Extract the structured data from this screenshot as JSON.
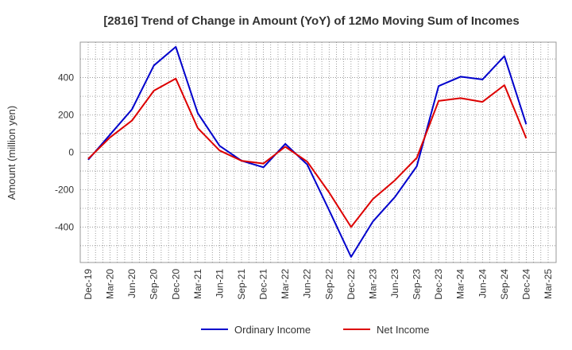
{
  "chart_data": {
    "type": "line",
    "title": "[2816]  Trend of Change in Amount (YoY) of 12Mo Moving Sum of Incomes",
    "xlabel": "",
    "ylabel": "Amount (million yen)",
    "ylim": [
      -590,
      590
    ],
    "yticks": [
      400,
      200,
      0,
      -200,
      -400
    ],
    "categories": [
      "Dec-19",
      "Mar-20",
      "Jun-20",
      "Sep-20",
      "Dec-20",
      "Mar-21",
      "Jun-21",
      "Sep-21",
      "Dec-21",
      "Mar-22",
      "Jun-22",
      "Sep-22",
      "Dec-22",
      "Mar-23",
      "Jun-23",
      "Sep-23",
      "Dec-23",
      "Mar-24",
      "Jun-24",
      "Sep-24",
      "Dec-24",
      "Mar-25"
    ],
    "series": [
      {
        "name": "Ordinary Income",
        "color": "#0000cc",
        "values": [
          -40,
          95,
          230,
          465,
          565,
          210,
          35,
          -45,
          -80,
          45,
          -65,
          -310,
          -560,
          -370,
          -240,
          -75,
          355,
          405,
          390,
          515,
          150,
          null
        ]
      },
      {
        "name": "Net Income",
        "color": "#dd0000",
        "values": [
          -35,
          80,
          170,
          330,
          395,
          130,
          10,
          -45,
          -60,
          30,
          -50,
          -215,
          -400,
          -250,
          -150,
          -30,
          275,
          290,
          270,
          360,
          75,
          null
        ]
      }
    ],
    "grid": true,
    "legend": "bottom-center"
  }
}
